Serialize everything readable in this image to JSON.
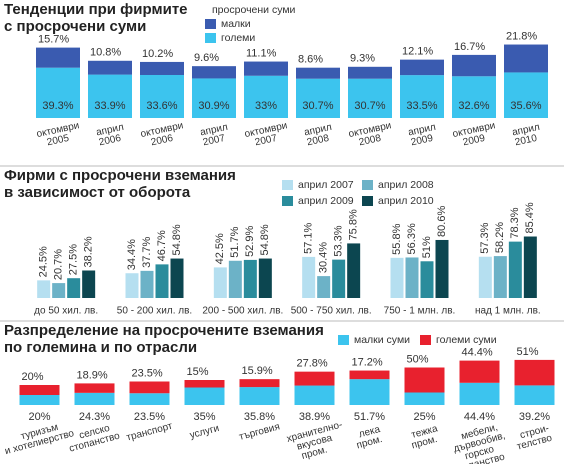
{
  "chart_data": [
    {
      "type": "bar",
      "stacked": true,
      "title": [
        "Тенденции при фирмите",
        "с просрочени суми"
      ],
      "legend_title": "просрочени суми",
      "categories": [
        [
          "октомври",
          "2005"
        ],
        [
          "април",
          "2006"
        ],
        [
          "октомври",
          "2006"
        ],
        [
          "април",
          "2007"
        ],
        [
          "октомври",
          "2007"
        ],
        [
          "април",
          "2008"
        ],
        [
          "октомври",
          "2008"
        ],
        [
          "април",
          "2009"
        ],
        [
          "октомври",
          "2009"
        ],
        [
          "април",
          "2010"
        ]
      ],
      "series": [
        {
          "name": "малки",
          "color": "#3a5bb0",
          "values": [
            15.7,
            10.8,
            10.2,
            9.6,
            11.1,
            8.6,
            9.3,
            12.1,
            16.7,
            21.8
          ],
          "value_labels": [
            "15.7%",
            "10.8%",
            "10.2%",
            "9.6%",
            "11.1%",
            "8.6%",
            "9.3%",
            "12.1%",
            "16.7%",
            "21.8%"
          ]
        },
        {
          "name": "големи",
          "color": "#3cc4ee",
          "values": [
            39.3,
            33.9,
            33.6,
            30.9,
            33,
            30.7,
            30.7,
            33.5,
            32.6,
            35.6
          ],
          "value_labels": [
            "39.3%",
            "33.9%",
            "33.6%",
            "30.9%",
            "33%",
            "30.7%",
            "30.7%",
            "33.5%",
            "32.6%",
            "35.6%"
          ]
        }
      ]
    },
    {
      "type": "bar",
      "stacked": false,
      "title": [
        "Фирми с просрочени вземания",
        "в зависимост от оборота"
      ],
      "categories": [
        [
          "до 50 хил. лв."
        ],
        [
          "50 - 200 хил. лв."
        ],
        [
          "200 - 500 хил. лв."
        ],
        [
          "500 - 750 хил. лв."
        ],
        [
          "750 - 1 млн. лв."
        ],
        [
          "над 1 млн. лв."
        ]
      ],
      "series": [
        {
          "name": "април 2007",
          "color": "#b5dff0",
          "values": [
            24.5,
            34.4,
            42.5,
            57.1,
            55.8,
            57.3
          ],
          "value_labels": [
            "24.5%",
            "34.4%",
            "42.5%",
            "57.1%",
            "55.8%",
            "57.3%"
          ]
        },
        {
          "name": "април 2008",
          "color": "#6cb2c7",
          "values": [
            20.7,
            37.7,
            51.7,
            30.4,
            56.3,
            58.2
          ],
          "value_labels": [
            "20.7%",
            "37.7%",
            "51.7%",
            "30.4%",
            "56.3%",
            "58.2%"
          ]
        },
        {
          "name": "април 2009",
          "color": "#2a8c9c",
          "values": [
            27.5,
            46.7,
            52.9,
            53.3,
            51,
            78.3
          ],
          "value_labels": [
            "27.5%",
            "46.7%",
            "52.9%",
            "53.3%",
            "51%",
            "78.3%"
          ]
        },
        {
          "name": "април 2010",
          "color": "#0c4650",
          "values": [
            38.2,
            54.8,
            54.8,
            75.8,
            80.6,
            85.4
          ],
          "value_labels": [
            "38.2%",
            "54.8%",
            "54.8%",
            "75.8%",
            "80.6%",
            "85.4%"
          ]
        }
      ]
    },
    {
      "type": "bar",
      "stacked": true,
      "title": [
        "Разпределение на просрочените вземания",
        "по големина и по отрасли"
      ],
      "categories": [
        [
          "туризъм",
          "и хотелиерство"
        ],
        [
          "селско",
          "стопанство"
        ],
        [
          "транспорт"
        ],
        [
          "услуги"
        ],
        [
          "търговия"
        ],
        [
          "хранително-",
          "вкусова",
          "пром."
        ],
        [
          "лека",
          "пром."
        ],
        [
          "тежка",
          "пром."
        ],
        [
          "мебели,",
          "дървообив,",
          "горско",
          "стопанство"
        ],
        [
          "строи-",
          "телство"
        ]
      ],
      "series": [
        {
          "name": "малки суми",
          "color": "#3cc4ee",
          "values": [
            20,
            24.3,
            23.5,
            35,
            35.8,
            38.9,
            51.7,
            25,
            44.4,
            39.2
          ],
          "value_labels": [
            "20%",
            "24.3%",
            "23.5%",
            "35%",
            "35.8%",
            "38.9%",
            "51.7%",
            "25%",
            "44.4%",
            "39.2%"
          ]
        },
        {
          "name": "големи суми",
          "color": "#e8212e",
          "values": [
            20,
            18.9,
            23.5,
            15,
            15.9,
            27.8,
            17.2,
            50,
            44.4,
            51
          ],
          "value_labels": [
            "20%",
            "18.9%",
            "23.5%",
            "15%",
            "15.9%",
            "27.8%",
            "17.2%",
            "50%",
            "44.4%",
            "51%"
          ]
        }
      ]
    }
  ]
}
